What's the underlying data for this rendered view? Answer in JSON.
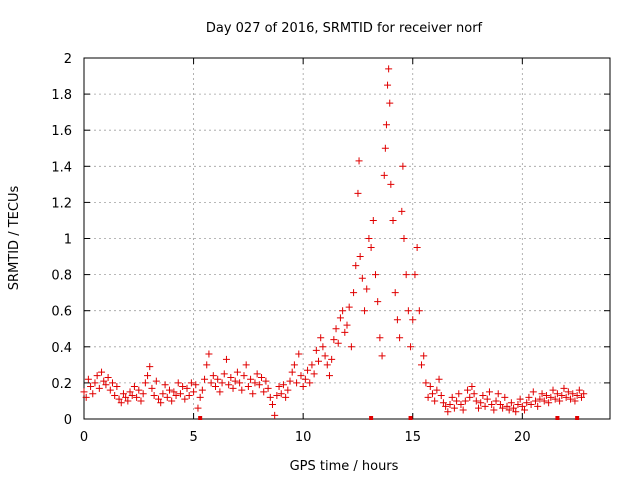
{
  "chart_data": {
    "type": "scatter",
    "title": "Day 027 of 2016, SRMTID for receiver norf",
    "xlabel": "GPS time / hours",
    "ylabel": "SRMTID / TECUs",
    "xlim": [
      0,
      24
    ],
    "ylim": [
      0,
      2
    ],
    "xticks": [
      0,
      5,
      10,
      15,
      20
    ],
    "yticks": [
      0,
      0.2,
      0.4,
      0.6,
      0.8,
      1,
      1.2,
      1.4,
      1.6,
      1.8,
      2
    ],
    "grid": true,
    "marker": "plus",
    "color": "#e00000",
    "series": [
      {
        "name": "SRMTID",
        "points": [
          [
            0.0,
            0.15
          ],
          [
            0.1,
            0.12
          ],
          [
            0.2,
            0.22
          ],
          [
            0.3,
            0.18
          ],
          [
            0.4,
            0.14
          ],
          [
            0.5,
            0.2
          ],
          [
            0.6,
            0.24
          ],
          [
            0.7,
            0.17
          ],
          [
            0.8,
            0.26
          ],
          [
            0.9,
            0.21
          ],
          [
            1.0,
            0.19
          ],
          [
            1.1,
            0.23
          ],
          [
            1.2,
            0.16
          ],
          [
            1.3,
            0.2
          ],
          [
            1.4,
            0.13
          ],
          [
            1.5,
            0.18
          ],
          [
            1.6,
            0.11
          ],
          [
            1.7,
            0.09
          ],
          [
            1.8,
            0.14
          ],
          [
            1.9,
            0.12
          ],
          [
            2.0,
            0.1
          ],
          [
            2.1,
            0.15
          ],
          [
            2.2,
            0.13
          ],
          [
            2.3,
            0.18
          ],
          [
            2.4,
            0.12
          ],
          [
            2.5,
            0.16
          ],
          [
            2.6,
            0.1
          ],
          [
            2.7,
            0.14
          ],
          [
            2.8,
            0.2
          ],
          [
            2.9,
            0.24
          ],
          [
            3.0,
            0.29
          ],
          [
            3.1,
            0.17
          ],
          [
            3.2,
            0.13
          ],
          [
            3.3,
            0.21
          ],
          [
            3.4,
            0.11
          ],
          [
            3.5,
            0.09
          ],
          [
            3.6,
            0.14
          ],
          [
            3.7,
            0.19
          ],
          [
            3.8,
            0.12
          ],
          [
            3.9,
            0.16
          ],
          [
            4.0,
            0.1
          ],
          [
            4.1,
            0.15
          ],
          [
            4.2,
            0.13
          ],
          [
            4.3,
            0.2
          ],
          [
            4.4,
            0.14
          ],
          [
            4.5,
            0.18
          ],
          [
            4.6,
            0.11
          ],
          [
            4.7,
            0.17
          ],
          [
            4.8,
            0.13
          ],
          [
            4.9,
            0.2
          ],
          [
            5.0,
            0.15
          ],
          [
            5.1,
            0.19
          ],
          [
            5.2,
            0.06
          ],
          [
            5.3,
            0.12
          ],
          [
            5.4,
            0.16
          ],
          [
            5.5,
            0.22
          ],
          [
            5.6,
            0.3
          ],
          [
            5.7,
            0.36
          ],
          [
            5.8,
            0.2
          ],
          [
            5.9,
            0.24
          ],
          [
            6.0,
            0.18
          ],
          [
            6.1,
            0.22
          ],
          [
            6.2,
            0.15
          ],
          [
            6.3,
            0.2
          ],
          [
            6.4,
            0.25
          ],
          [
            6.5,
            0.33
          ],
          [
            6.6,
            0.19
          ],
          [
            6.7,
            0.23
          ],
          [
            6.8,
            0.17
          ],
          [
            6.9,
            0.21
          ],
          [
            7.0,
            0.26
          ],
          [
            7.1,
            0.2
          ],
          [
            7.2,
            0.16
          ],
          [
            7.3,
            0.24
          ],
          [
            7.4,
            0.3
          ],
          [
            7.5,
            0.18
          ],
          [
            7.6,
            0.22
          ],
          [
            7.7,
            0.14
          ],
          [
            7.8,
            0.2
          ],
          [
            7.9,
            0.25
          ],
          [
            8.0,
            0.19
          ],
          [
            8.1,
            0.23
          ],
          [
            8.2,
            0.15
          ],
          [
            8.3,
            0.21
          ],
          [
            8.4,
            0.17
          ],
          [
            8.5,
            0.12
          ],
          [
            8.6,
            0.08
          ],
          [
            8.7,
            0.02
          ],
          [
            8.8,
            0.13
          ],
          [
            8.9,
            0.18
          ],
          [
            9.0,
            0.14
          ],
          [
            9.1,
            0.19
          ],
          [
            9.2,
            0.12
          ],
          [
            9.3,
            0.16
          ],
          [
            9.4,
            0.21
          ],
          [
            9.5,
            0.26
          ],
          [
            9.6,
            0.3
          ],
          [
            9.7,
            0.2
          ],
          [
            9.8,
            0.36
          ],
          [
            9.9,
            0.24
          ],
          [
            10.0,
            0.18
          ],
          [
            10.1,
            0.22
          ],
          [
            10.2,
            0.27
          ],
          [
            10.3,
            0.2
          ],
          [
            10.4,
            0.3
          ],
          [
            10.5,
            0.25
          ],
          [
            10.6,
            0.38
          ],
          [
            10.7,
            0.32
          ],
          [
            10.8,
            0.45
          ],
          [
            10.9,
            0.4
          ],
          [
            11.0,
            0.35
          ],
          [
            11.1,
            0.3
          ],
          [
            11.2,
            0.24
          ],
          [
            11.3,
            0.33
          ],
          [
            11.4,
            0.44
          ],
          [
            11.5,
            0.5
          ],
          [
            11.6,
            0.42
          ],
          [
            11.7,
            0.56
          ],
          [
            11.8,
            0.6
          ],
          [
            11.9,
            0.48
          ],
          [
            12.0,
            0.52
          ],
          [
            12.1,
            0.62
          ],
          [
            12.2,
            0.4
          ],
          [
            12.3,
            0.7
          ],
          [
            12.4,
            0.85
          ],
          [
            12.5,
            1.25
          ],
          [
            12.55,
            1.43
          ],
          [
            12.6,
            0.9
          ],
          [
            12.7,
            0.78
          ],
          [
            12.8,
            0.6
          ],
          [
            12.9,
            0.72
          ],
          [
            13.0,
            1.0
          ],
          [
            13.1,
            0.95
          ],
          [
            13.2,
            1.1
          ],
          [
            13.3,
            0.8
          ],
          [
            13.4,
            0.65
          ],
          [
            13.5,
            0.45
          ],
          [
            13.6,
            0.35
          ],
          [
            13.7,
            1.35
          ],
          [
            13.75,
            1.5
          ],
          [
            13.8,
            1.63
          ],
          [
            13.85,
            1.85
          ],
          [
            13.9,
            1.94
          ],
          [
            13.95,
            1.75
          ],
          [
            14.0,
            1.3
          ],
          [
            14.1,
            1.1
          ],
          [
            14.2,
            0.7
          ],
          [
            14.3,
            0.55
          ],
          [
            14.4,
            0.45
          ],
          [
            14.5,
            1.15
          ],
          [
            14.55,
            1.4
          ],
          [
            14.6,
            1.0
          ],
          [
            14.7,
            0.8
          ],
          [
            14.8,
            0.6
          ],
          [
            14.9,
            0.4
          ],
          [
            15.0,
            0.55
          ],
          [
            15.1,
            0.8
          ],
          [
            15.2,
            0.95
          ],
          [
            15.3,
            0.6
          ],
          [
            15.4,
            0.3
          ],
          [
            15.5,
            0.35
          ],
          [
            15.6,
            0.2
          ],
          [
            15.7,
            0.12
          ],
          [
            15.8,
            0.18
          ],
          [
            15.9,
            0.14
          ],
          [
            16.0,
            0.1
          ],
          [
            16.1,
            0.16
          ],
          [
            16.2,
            0.22
          ],
          [
            16.3,
            0.13
          ],
          [
            16.4,
            0.09
          ],
          [
            16.5,
            0.07
          ],
          [
            16.6,
            0.04
          ],
          [
            16.7,
            0.08
          ],
          [
            16.8,
            0.12
          ],
          [
            16.9,
            0.06
          ],
          [
            17.0,
            0.1
          ],
          [
            17.1,
            0.14
          ],
          [
            17.2,
            0.08
          ],
          [
            17.3,
            0.05
          ],
          [
            17.4,
            0.1
          ],
          [
            17.5,
            0.16
          ],
          [
            17.6,
            0.12
          ],
          [
            17.7,
            0.18
          ],
          [
            17.8,
            0.14
          ],
          [
            17.9,
            0.1
          ],
          [
            18.0,
            0.06
          ],
          [
            18.1,
            0.09
          ],
          [
            18.2,
            0.13
          ],
          [
            18.3,
            0.07
          ],
          [
            18.4,
            0.11
          ],
          [
            18.5,
            0.15
          ],
          [
            18.6,
            0.08
          ],
          [
            18.7,
            0.05
          ],
          [
            18.8,
            0.1
          ],
          [
            18.9,
            0.14
          ],
          [
            19.0,
            0.08
          ],
          [
            19.1,
            0.06
          ],
          [
            19.2,
            0.12
          ],
          [
            19.3,
            0.07
          ],
          [
            19.4,
            0.05
          ],
          [
            19.5,
            0.09
          ],
          [
            19.6,
            0.06
          ],
          [
            19.7,
            0.04
          ],
          [
            19.8,
            0.08
          ],
          [
            19.9,
            0.11
          ],
          [
            20.0,
            0.07
          ],
          [
            20.1,
            0.05
          ],
          [
            20.2,
            0.09
          ],
          [
            20.3,
            0.12
          ],
          [
            20.4,
            0.08
          ],
          [
            20.5,
            0.15
          ],
          [
            20.6,
            0.1
          ],
          [
            20.7,
            0.07
          ],
          [
            20.8,
            0.11
          ],
          [
            20.9,
            0.14
          ],
          [
            21.0,
            0.1
          ],
          [
            21.1,
            0.13
          ],
          [
            21.2,
            0.09
          ],
          [
            21.3,
            0.12
          ],
          [
            21.4,
            0.16
          ],
          [
            21.5,
            0.11
          ],
          [
            21.6,
            0.14
          ],
          [
            21.7,
            0.1
          ],
          [
            21.8,
            0.13
          ],
          [
            21.9,
            0.17
          ],
          [
            22.0,
            0.12
          ],
          [
            22.1,
            0.15
          ],
          [
            22.2,
            0.11
          ],
          [
            22.3,
            0.14
          ],
          [
            22.4,
            0.1
          ],
          [
            22.5,
            0.13
          ],
          [
            22.6,
            0.16
          ],
          [
            22.7,
            0.12
          ],
          [
            22.8,
            0.14
          ]
        ]
      }
    ],
    "gap_markers_x": [
      5.3,
      13.1,
      14.9,
      21.6,
      22.5
    ]
  }
}
